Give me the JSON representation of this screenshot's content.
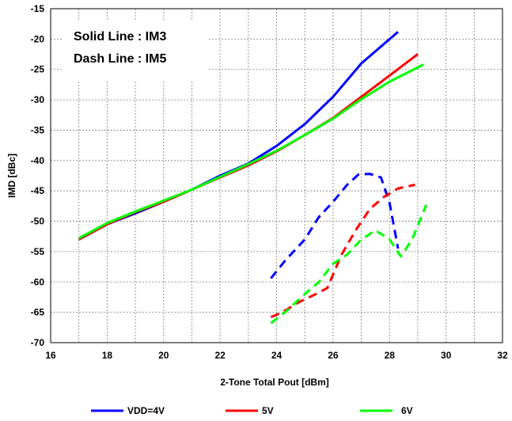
{
  "chart_data": {
    "type": "line",
    "xlabel": "2-Tone Total Pout  [dBm]",
    "ylabel": "IMD  [dBc]",
    "xlim": [
      16,
      32
    ],
    "ylim": [
      -70,
      -15
    ],
    "xticks": [
      16,
      18,
      20,
      22,
      24,
      26,
      28,
      30,
      32
    ],
    "yticks": [
      -15,
      -20,
      -25,
      -30,
      -35,
      -40,
      -45,
      -50,
      -55,
      -60,
      -65,
      -70
    ],
    "grid": true,
    "annotations": [
      "Solid Line : IM3",
      "Dash Line : IM5"
    ],
    "legend_position": "bottom",
    "series": [
      {
        "name": "VDD=4V",
        "metric": "IM3",
        "style": "solid",
        "color": "#0000ff",
        "x": [
          17,
          18,
          19,
          20,
          21,
          22,
          23,
          24,
          25,
          26,
          27,
          28.3
        ],
        "y": [
          -53,
          -50.5,
          -48.7,
          -46.8,
          -44.8,
          -42.5,
          -40.5,
          -37.6,
          -34,
          -29.5,
          -24,
          -18.8
        ]
      },
      {
        "name": "5V",
        "metric": "IM3",
        "style": "solid",
        "color": "#ff0000",
        "x": [
          17,
          18,
          19,
          20,
          21,
          22,
          23,
          24,
          25,
          26,
          27,
          28,
          29
        ],
        "y": [
          -53,
          -50.5,
          -48.5,
          -46.8,
          -44.8,
          -42.8,
          -40.8,
          -38.5,
          -35.8,
          -33,
          -29.5,
          -26,
          -22.5
        ]
      },
      {
        "name": "6V",
        "metric": "IM3",
        "style": "solid",
        "color": "#00ff00",
        "x": [
          17,
          18,
          19,
          20,
          21,
          22,
          23,
          24,
          25,
          26,
          27,
          28,
          29.2
        ],
        "y": [
          -52.8,
          -50.3,
          -48.4,
          -46.6,
          -44.8,
          -42.7,
          -40.6,
          -38.4,
          -35.8,
          -33.1,
          -29.9,
          -27,
          -24.2
        ]
      },
      {
        "name": "VDD=4V",
        "metric": "IM5",
        "style": "dash",
        "color": "#0000ff",
        "x": [
          23.8,
          24.3,
          25,
          25.5,
          26,
          26.5,
          26.9,
          27.3,
          27.7,
          28,
          28.3
        ],
        "y": [
          -59.4,
          -56.5,
          -53,
          -49.3,
          -46.8,
          -44,
          -42.3,
          -42.2,
          -42.8,
          -47,
          -54.5
        ]
      },
      {
        "name": "5V",
        "metric": "IM5",
        "style": "dash",
        "color": "#ff0000",
        "x": [
          23.8,
          24.2,
          24.8,
          25.3,
          25.8,
          26.3,
          26.8,
          27.3,
          27.8,
          28.3,
          28.9
        ],
        "y": [
          -65.8,
          -65,
          -63.3,
          -62.2,
          -61,
          -55.5,
          -51.5,
          -48,
          -46,
          -44.6,
          -44
        ]
      },
      {
        "name": "6V",
        "metric": "IM5",
        "style": "dash",
        "color": "#00ff00",
        "x": [
          23.8,
          24.3,
          25,
          25.5,
          26,
          26.5,
          27,
          27.5,
          28,
          28.4,
          28.8,
          29.3
        ],
        "y": [
          -66.8,
          -65,
          -62,
          -60,
          -57,
          -55.5,
          -53,
          -51.5,
          -53,
          -55.8,
          -53,
          -47.3
        ]
      }
    ],
    "legend": [
      {
        "label": "VDD=4V",
        "color": "#0000ff"
      },
      {
        "label": "5V",
        "color": "#ff0000"
      },
      {
        "label": "6V",
        "color": "#00ff00"
      }
    ]
  }
}
